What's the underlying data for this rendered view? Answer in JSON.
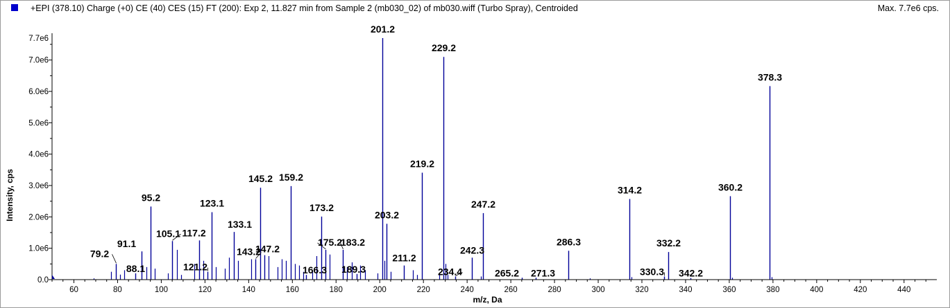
{
  "header": {
    "title": "+EPI (378.10) Charge (+0) CE (40) CES (15) FT (200): Exp 2, 11.827 min from Sample 2 (mb030_02) of mb030.wiff (Turbo Spray), Centroided",
    "max": "Max. 7.7e6 cps."
  },
  "colors": {
    "series": "#000099",
    "swatch": "#0000cc",
    "axis": "#000000"
  },
  "chart_data": {
    "type": "bar",
    "xlabel": "m/z, Da",
    "ylabel": "Intensity, cps",
    "xlim": [
      50,
      455
    ],
    "ylim": [
      0,
      7700000.0
    ],
    "grid": false,
    "xticks": [
      60,
      80,
      100,
      120,
      140,
      160,
      180,
      200,
      220,
      240,
      260,
      280,
      300,
      320,
      340,
      360,
      380,
      400,
      420,
      440
    ],
    "yticks": [
      {
        "value": 0,
        "label": "0.0"
      },
      {
        "value": 1000000,
        "label": "1.0e6"
      },
      {
        "value": 2000000,
        "label": "2.0e6"
      },
      {
        "value": 3000000,
        "label": "3.0e6"
      },
      {
        "value": 4000000,
        "label": "4.0e6"
      },
      {
        "value": 5000000,
        "label": "5.0e6"
      },
      {
        "value": 6000000,
        "label": "6.0e6"
      },
      {
        "value": 7000000,
        "label": "7.0e6"
      },
      {
        "value": 7700000,
        "label": "7.7e6"
      }
    ],
    "labeled_peaks": [
      {
        "mz": 79.2,
        "intensity": 500000,
        "label": "79.2"
      },
      {
        "mz": 88.1,
        "intensity": 200000,
        "label": "88.1"
      },
      {
        "mz": 91.1,
        "intensity": 900000,
        "label": "91.1"
      },
      {
        "mz": 95.2,
        "intensity": 2330000,
        "label": "95.2"
      },
      {
        "mz": 105.1,
        "intensity": 1230000,
        "label": "105.1"
      },
      {
        "mz": 117.2,
        "intensity": 1250000,
        "label": "117.2"
      },
      {
        "mz": 121.2,
        "intensity": 250000,
        "label": "121.2"
      },
      {
        "mz": 123.1,
        "intensity": 2150000,
        "label": "123.1"
      },
      {
        "mz": 133.1,
        "intensity": 1520000,
        "label": "133.1"
      },
      {
        "mz": 143.2,
        "intensity": 650000,
        "label": "143.2"
      },
      {
        "mz": 145.2,
        "intensity": 2930000,
        "label": "145.2"
      },
      {
        "mz": 147.2,
        "intensity": 780000,
        "label": "147.2"
      },
      {
        "mz": 159.2,
        "intensity": 2980000,
        "label": "159.2"
      },
      {
        "mz": 166.3,
        "intensity": 150000,
        "label": "166.3"
      },
      {
        "mz": 173.2,
        "intensity": 2010000,
        "label": "173.2"
      },
      {
        "mz": 175.2,
        "intensity": 950000,
        "label": "175.2"
      },
      {
        "mz": 183.2,
        "intensity": 950000,
        "label": "183.2"
      },
      {
        "mz": 189.3,
        "intensity": 180000,
        "label": "189.3"
      },
      {
        "mz": 201.2,
        "intensity": 7700000,
        "label": "201.2"
      },
      {
        "mz": 203.2,
        "intensity": 1780000,
        "label": "203.2"
      },
      {
        "mz": 211.2,
        "intensity": 450000,
        "label": "211.2"
      },
      {
        "mz": 219.2,
        "intensity": 3410000,
        "label": "219.2"
      },
      {
        "mz": 229.2,
        "intensity": 7100000,
        "label": "229.2"
      },
      {
        "mz": 234.4,
        "intensity": 100000,
        "label": "234.4"
      },
      {
        "mz": 242.3,
        "intensity": 700000,
        "label": "242.3"
      },
      {
        "mz": 247.2,
        "intensity": 2120000,
        "label": "247.2"
      },
      {
        "mz": 265.2,
        "intensity": 60000,
        "label": "265.2"
      },
      {
        "mz": 271.3,
        "intensity": 60000,
        "label": "271.3"
      },
      {
        "mz": 286.3,
        "intensity": 920000,
        "label": "286.3"
      },
      {
        "mz": 314.2,
        "intensity": 2570000,
        "label": "314.2"
      },
      {
        "mz": 330.3,
        "intensity": 100000,
        "label": "330.3"
      },
      {
        "mz": 332.2,
        "intensity": 880000,
        "label": "332.2"
      },
      {
        "mz": 342.2,
        "intensity": 50000,
        "label": "342.2"
      },
      {
        "mz": 360.2,
        "intensity": 2660000,
        "label": "360.2"
      },
      {
        "mz": 378.3,
        "intensity": 6170000,
        "label": "378.3"
      }
    ],
    "minor_peaks": [
      {
        "mz": 69.0,
        "intensity": 40000
      },
      {
        "mz": 77.1,
        "intensity": 250000
      },
      {
        "mz": 81.1,
        "intensity": 160000
      },
      {
        "mz": 83.1,
        "intensity": 300000
      },
      {
        "mz": 93.1,
        "intensity": 400000
      },
      {
        "mz": 97.1,
        "intensity": 350000
      },
      {
        "mz": 103.1,
        "intensity": 200000
      },
      {
        "mz": 107.1,
        "intensity": 950000
      },
      {
        "mz": 109.1,
        "intensity": 150000
      },
      {
        "mz": 115.1,
        "intensity": 500000
      },
      {
        "mz": 119.1,
        "intensity": 600000
      },
      {
        "mz": 125.1,
        "intensity": 400000
      },
      {
        "mz": 129.1,
        "intensity": 350000
      },
      {
        "mz": 131.1,
        "intensity": 700000
      },
      {
        "mz": 135.1,
        "intensity": 600000
      },
      {
        "mz": 141.1,
        "intensity": 650000
      },
      {
        "mz": 149.1,
        "intensity": 750000
      },
      {
        "mz": 153.1,
        "intensity": 400000
      },
      {
        "mz": 155.1,
        "intensity": 650000
      },
      {
        "mz": 157.1,
        "intensity": 600000
      },
      {
        "mz": 161.1,
        "intensity": 500000
      },
      {
        "mz": 163.1,
        "intensity": 450000
      },
      {
        "mz": 165.1,
        "intensity": 250000
      },
      {
        "mz": 169.1,
        "intensity": 300000
      },
      {
        "mz": 171.1,
        "intensity": 750000
      },
      {
        "mz": 177.1,
        "intensity": 800000
      },
      {
        "mz": 185.1,
        "intensity": 400000
      },
      {
        "mz": 187.1,
        "intensity": 550000
      },
      {
        "mz": 191.1,
        "intensity": 450000
      },
      {
        "mz": 193.1,
        "intensity": 300000
      },
      {
        "mz": 199.1,
        "intensity": 200000
      },
      {
        "mz": 202.2,
        "intensity": 600000
      },
      {
        "mz": 205.1,
        "intensity": 250000
      },
      {
        "mz": 215.1,
        "intensity": 300000
      },
      {
        "mz": 217.1,
        "intensity": 150000
      },
      {
        "mz": 227.1,
        "intensity": 200000
      },
      {
        "mz": 230.2,
        "intensity": 500000
      },
      {
        "mz": 231.1,
        "intensity": 150000
      },
      {
        "mz": 246.2,
        "intensity": 100000
      },
      {
        "mz": 296.2,
        "intensity": 40000
      },
      {
        "mz": 315.2,
        "intensity": 80000
      },
      {
        "mz": 361.2,
        "intensity": 60000
      },
      {
        "mz": 379.3,
        "intensity": 80000
      }
    ]
  }
}
